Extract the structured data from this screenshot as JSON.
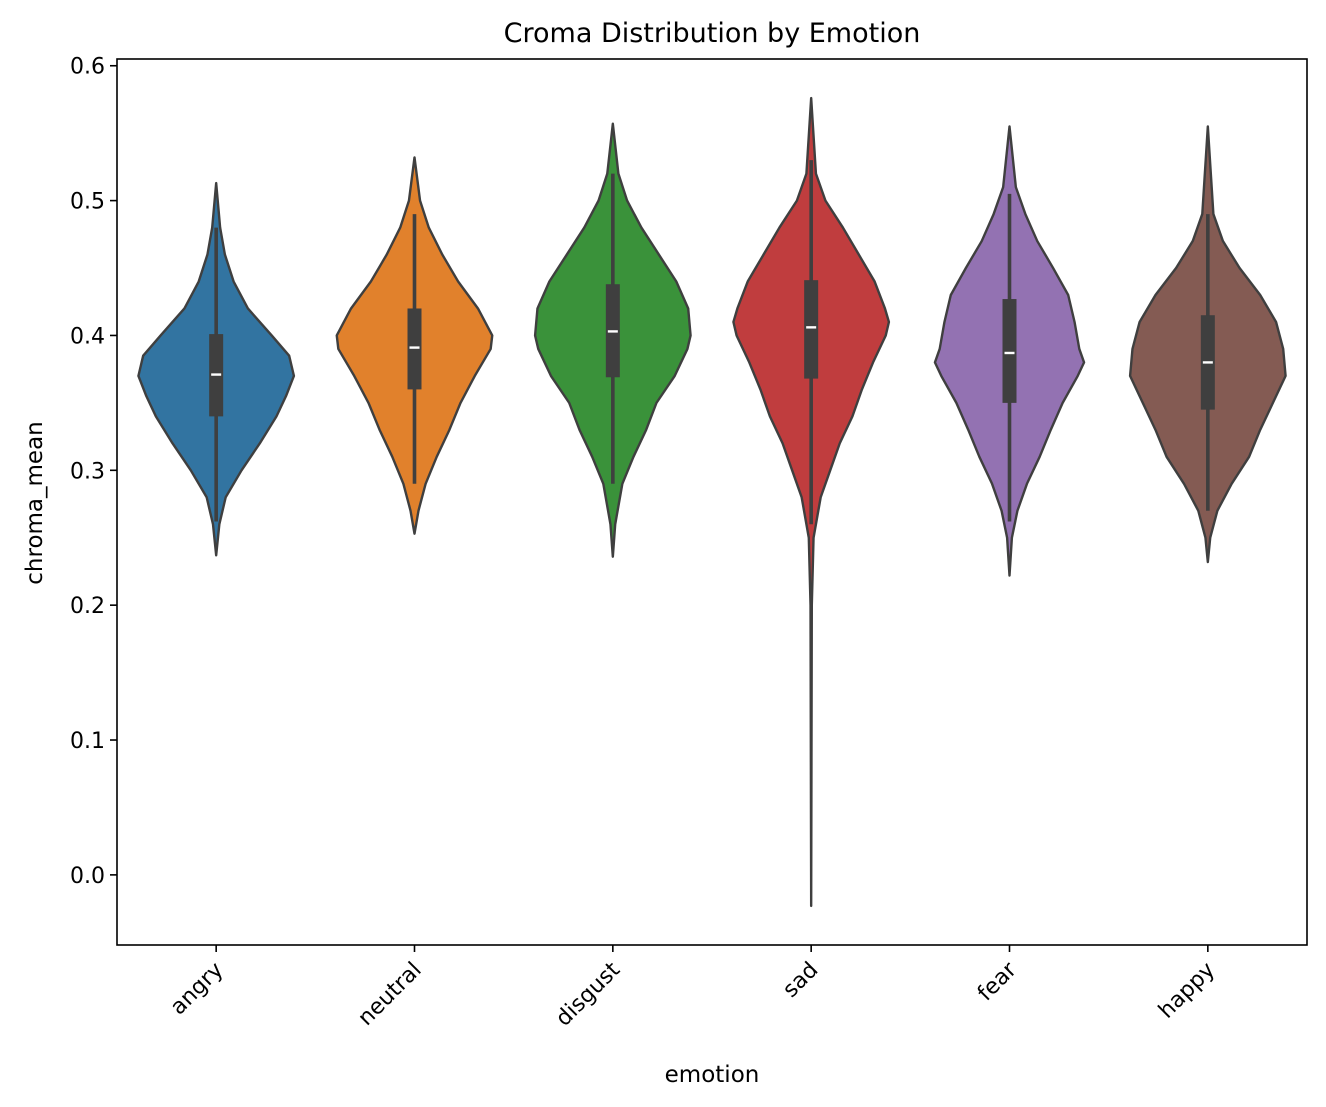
{
  "chart_data": {
    "type": "violin",
    "title": "Croma Distribution by Emotion",
    "xlabel": "emotion",
    "ylabel": "chroma_mean",
    "ylim": [
      -0.052,
      0.605
    ],
    "yticks": [
      0.0,
      0.1,
      0.2,
      0.3,
      0.4,
      0.5,
      0.6
    ],
    "ytick_labels": [
      "0.0",
      "0.1",
      "0.2",
      "0.3",
      "0.4",
      "0.5",
      "0.6"
    ],
    "xtick_rotation_deg": 45,
    "grid": false,
    "legend": "none",
    "categories": [
      "angry",
      "neutral",
      "disgust",
      "sad",
      "fear",
      "happy"
    ],
    "colors": [
      "#3274a1",
      "#e1812c",
      "#3a923a",
      "#c03d3e",
      "#9372b2",
      "#845b53"
    ],
    "series": [
      {
        "min": 0.237,
        "max": 0.513,
        "q1": 0.34,
        "median": 0.371,
        "q3": 0.401,
        "whisker_low": 0.262,
        "whisker_high": 0.48,
        "profile": [
          [
            0.237,
            0.0
          ],
          [
            0.26,
            0.04
          ],
          [
            0.28,
            0.12
          ],
          [
            0.3,
            0.32
          ],
          [
            0.32,
            0.55
          ],
          [
            0.34,
            0.76
          ],
          [
            0.355,
            0.88
          ],
          [
            0.37,
            0.98
          ],
          [
            0.385,
            0.92
          ],
          [
            0.4,
            0.7
          ],
          [
            0.42,
            0.4
          ],
          [
            0.44,
            0.22
          ],
          [
            0.46,
            0.11
          ],
          [
            0.48,
            0.05
          ],
          [
            0.513,
            0.0
          ]
        ]
      },
      {
        "min": 0.253,
        "max": 0.532,
        "q1": 0.36,
        "median": 0.391,
        "q3": 0.42,
        "whisker_low": 0.29,
        "whisker_high": 0.49,
        "profile": [
          [
            0.253,
            0.0
          ],
          [
            0.27,
            0.05
          ],
          [
            0.29,
            0.14
          ],
          [
            0.31,
            0.28
          ],
          [
            0.33,
            0.44
          ],
          [
            0.35,
            0.58
          ],
          [
            0.37,
            0.76
          ],
          [
            0.39,
            0.96
          ],
          [
            0.4,
            0.98
          ],
          [
            0.42,
            0.8
          ],
          [
            0.44,
            0.55
          ],
          [
            0.46,
            0.35
          ],
          [
            0.48,
            0.18
          ],
          [
            0.5,
            0.07
          ],
          [
            0.532,
            0.0
          ]
        ]
      },
      {
        "min": 0.236,
        "max": 0.557,
        "q1": 0.369,
        "median": 0.403,
        "q3": 0.438,
        "whisker_low": 0.29,
        "whisker_high": 0.52,
        "profile": [
          [
            0.236,
            0.0
          ],
          [
            0.26,
            0.03
          ],
          [
            0.29,
            0.12
          ],
          [
            0.31,
            0.26
          ],
          [
            0.33,
            0.42
          ],
          [
            0.35,
            0.55
          ],
          [
            0.37,
            0.78
          ],
          [
            0.39,
            0.94
          ],
          [
            0.4,
            0.98
          ],
          [
            0.42,
            0.95
          ],
          [
            0.44,
            0.8
          ],
          [
            0.46,
            0.58
          ],
          [
            0.48,
            0.36
          ],
          [
            0.5,
            0.18
          ],
          [
            0.52,
            0.07
          ],
          [
            0.557,
            0.0
          ]
        ]
      },
      {
        "min": -0.023,
        "max": 0.576,
        "q1": 0.368,
        "median": 0.406,
        "q3": 0.441,
        "whisker_low": 0.26,
        "whisker_high": 0.53,
        "profile": [
          [
            -0.023,
            0.0
          ],
          [
            0.2,
            0.008
          ],
          [
            0.25,
            0.03
          ],
          [
            0.28,
            0.12
          ],
          [
            0.3,
            0.24
          ],
          [
            0.32,
            0.36
          ],
          [
            0.34,
            0.52
          ],
          [
            0.36,
            0.64
          ],
          [
            0.38,
            0.78
          ],
          [
            0.4,
            0.94
          ],
          [
            0.41,
            0.98
          ],
          [
            0.42,
            0.93
          ],
          [
            0.44,
            0.8
          ],
          [
            0.46,
            0.6
          ],
          [
            0.48,
            0.4
          ],
          [
            0.5,
            0.18
          ],
          [
            0.52,
            0.06
          ],
          [
            0.576,
            0.0
          ]
        ]
      },
      {
        "min": 0.222,
        "max": 0.555,
        "q1": 0.35,
        "median": 0.387,
        "q3": 0.427,
        "whisker_low": 0.262,
        "whisker_high": 0.505,
        "profile": [
          [
            0.222,
            0.0
          ],
          [
            0.25,
            0.03
          ],
          [
            0.27,
            0.1
          ],
          [
            0.29,
            0.22
          ],
          [
            0.31,
            0.38
          ],
          [
            0.33,
            0.52
          ],
          [
            0.35,
            0.67
          ],
          [
            0.37,
            0.86
          ],
          [
            0.38,
            0.94
          ],
          [
            0.39,
            0.88
          ],
          [
            0.41,
            0.82
          ],
          [
            0.43,
            0.74
          ],
          [
            0.45,
            0.55
          ],
          [
            0.47,
            0.35
          ],
          [
            0.49,
            0.2
          ],
          [
            0.51,
            0.08
          ],
          [
            0.555,
            0.0
          ]
        ]
      },
      {
        "min": 0.232,
        "max": 0.555,
        "q1": 0.345,
        "median": 0.38,
        "q3": 0.415,
        "whisker_low": 0.27,
        "whisker_high": 0.49,
        "profile": [
          [
            0.232,
            0.0
          ],
          [
            0.25,
            0.03
          ],
          [
            0.27,
            0.12
          ],
          [
            0.29,
            0.3
          ],
          [
            0.31,
            0.52
          ],
          [
            0.33,
            0.66
          ],
          [
            0.35,
            0.82
          ],
          [
            0.37,
            0.98
          ],
          [
            0.39,
            0.95
          ],
          [
            0.41,
            0.86
          ],
          [
            0.43,
            0.66
          ],
          [
            0.45,
            0.4
          ],
          [
            0.47,
            0.19
          ],
          [
            0.49,
            0.07
          ],
          [
            0.555,
            0.0
          ]
        ]
      }
    ]
  }
}
